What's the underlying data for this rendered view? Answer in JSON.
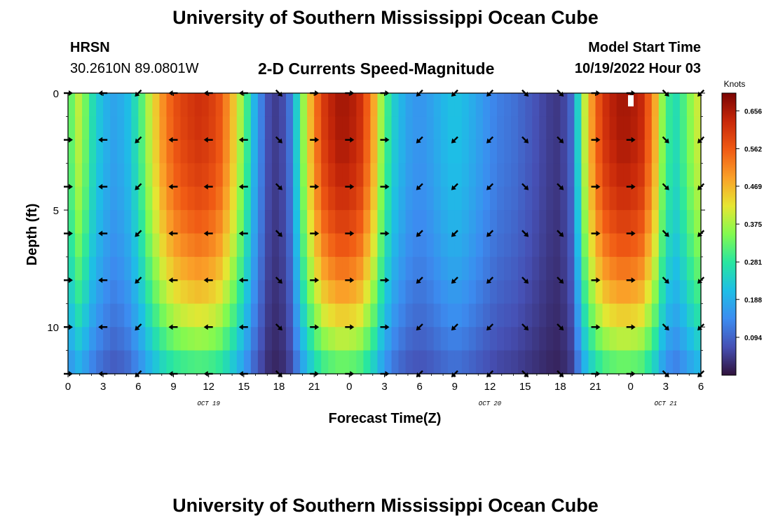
{
  "header": {
    "title": "University of Southern Mississippi Ocean Cube",
    "station": "HRSN",
    "coordinates": "30.2610N  89.0801W",
    "subtitle": "2-D Currents Speed-Magnitude",
    "model_start_label": "Model Start Time",
    "model_start_value": "10/19/2022 Hour 03"
  },
  "footer": {
    "title": "University of Southern Mississippi Ocean Cube"
  },
  "chart_data": {
    "type": "heatmap",
    "title": "2-D Currents Speed-Magnitude",
    "xlabel": "Forecast Time(Z)",
    "ylabel": "Depth (ft)",
    "x_range_hours": [
      0,
      54
    ],
    "y_range_ft": [
      0,
      12
    ],
    "y_reversed": true,
    "x_ticks": [
      {
        "h": 0,
        "label": "0"
      },
      {
        "h": 3,
        "label": "3"
      },
      {
        "h": 6,
        "label": "6"
      },
      {
        "h": 9,
        "label": "9"
      },
      {
        "h": 12,
        "label": "12"
      },
      {
        "h": 15,
        "label": "15"
      },
      {
        "h": 18,
        "label": "18"
      },
      {
        "h": 21,
        "label": "21"
      },
      {
        "h": 24,
        "label": "0"
      },
      {
        "h": 27,
        "label": "3"
      },
      {
        "h": 30,
        "label": "6"
      },
      {
        "h": 33,
        "label": "9"
      },
      {
        "h": 36,
        "label": "12"
      },
      {
        "h": 39,
        "label": "15"
      },
      {
        "h": 42,
        "label": "18"
      },
      {
        "h": 45,
        "label": "21"
      },
      {
        "h": 48,
        "label": "0"
      },
      {
        "h": 51,
        "label": "3"
      },
      {
        "h": 54,
        "label": "6"
      }
    ],
    "y_ticks": [
      {
        "v": 0,
        "label": "0"
      },
      {
        "v": 5,
        "label": "5"
      },
      {
        "v": 10,
        "label": "10"
      }
    ],
    "date_labels": [
      {
        "h": 12,
        "label": "OCT 19"
      },
      {
        "h": 36,
        "label": "OCT 20"
      },
      {
        "h": 51,
        "label": "OCT 21"
      }
    ],
    "colorbar": {
      "unit": "Knots",
      "min": 0.0,
      "max": 0.7,
      "tick_values": [
        0.094,
        0.188,
        0.281,
        0.375,
        0.469,
        0.562,
        0.656
      ],
      "tick_labels": [
        "0.094",
        "0.188",
        "0.281",
        "0.375",
        "0.469",
        "0.562",
        "0.656"
      ]
    },
    "speed_profile_knots": [
      {
        "h": 0,
        "v": 0.3
      },
      {
        "h": 1,
        "v": 0.4
      },
      {
        "h": 2,
        "v": 0.27
      },
      {
        "h": 3,
        "v": 0.2
      },
      {
        "h": 4,
        "v": 0.17
      },
      {
        "h": 5,
        "v": 0.2
      },
      {
        "h": 6,
        "v": 0.28
      },
      {
        "h": 7,
        "v": 0.4
      },
      {
        "h": 8,
        "v": 0.5
      },
      {
        "h": 9,
        "v": 0.57
      },
      {
        "h": 10,
        "v": 0.6
      },
      {
        "h": 11,
        "v": 0.62
      },
      {
        "h": 12,
        "v": 0.61
      },
      {
        "h": 13,
        "v": 0.57
      },
      {
        "h": 14,
        "v": 0.47
      },
      {
        "h": 15,
        "v": 0.34
      },
      {
        "h": 16,
        "v": 0.18
      },
      {
        "h": 17,
        "v": 0.07
      },
      {
        "h": 18,
        "v": 0.04
      },
      {
        "h": 19,
        "v": 0.12
      },
      {
        "h": 20,
        "v": 0.35
      },
      {
        "h": 21,
        "v": 0.52
      },
      {
        "h": 22,
        "v": 0.62
      },
      {
        "h": 23,
        "v": 0.66
      },
      {
        "h": 24,
        "v": 0.66
      },
      {
        "h": 25,
        "v": 0.62
      },
      {
        "h": 26,
        "v": 0.5
      },
      {
        "h": 27,
        "v": 0.32
      },
      {
        "h": 28,
        "v": 0.22
      },
      {
        "h": 29,
        "v": 0.17
      },
      {
        "h": 30,
        "v": 0.15
      },
      {
        "h": 31,
        "v": 0.17
      },
      {
        "h": 32,
        "v": 0.2
      },
      {
        "h": 33,
        "v": 0.22
      },
      {
        "h": 34,
        "v": 0.2
      },
      {
        "h": 35,
        "v": 0.17
      },
      {
        "h": 36,
        "v": 0.14
      },
      {
        "h": 37,
        "v": 0.12
      },
      {
        "h": 38,
        "v": 0.11
      },
      {
        "h": 39,
        "v": 0.09
      },
      {
        "h": 40,
        "v": 0.07
      },
      {
        "h": 41,
        "v": 0.05
      },
      {
        "h": 42,
        "v": 0.04
      },
      {
        "h": 43,
        "v": 0.1
      },
      {
        "h": 44,
        "v": 0.38
      },
      {
        "h": 45,
        "v": 0.55
      },
      {
        "h": 46,
        "v": 0.63
      },
      {
        "h": 47,
        "v": 0.66
      },
      {
        "h": 48,
        "v": 0.66
      },
      {
        "h": 49,
        "v": 0.63
      },
      {
        "h": 50,
        "v": 0.5
      },
      {
        "h": 51,
        "v": 0.3
      },
      {
        "h": 52,
        "v": 0.26
      },
      {
        "h": 53,
        "v": 0.35
      },
      {
        "h": 54,
        "v": 0.42
      }
    ],
    "arrow_depths_ft": [
      0,
      2,
      4,
      6,
      8,
      10,
      12
    ],
    "arrow_hours": [
      0,
      3,
      6,
      9,
      12,
      15,
      18,
      21,
      24,
      27,
      30,
      33,
      36,
      39,
      42,
      45,
      48,
      51,
      54
    ],
    "arrow_directions_deg": [
      "E",
      "W",
      "SW",
      "W",
      "W",
      "W",
      "SE",
      "E",
      "E",
      "E",
      "SW",
      "SW",
      "SW",
      "SE",
      "SE",
      "E",
      "E",
      "SE",
      "SW"
    ]
  }
}
